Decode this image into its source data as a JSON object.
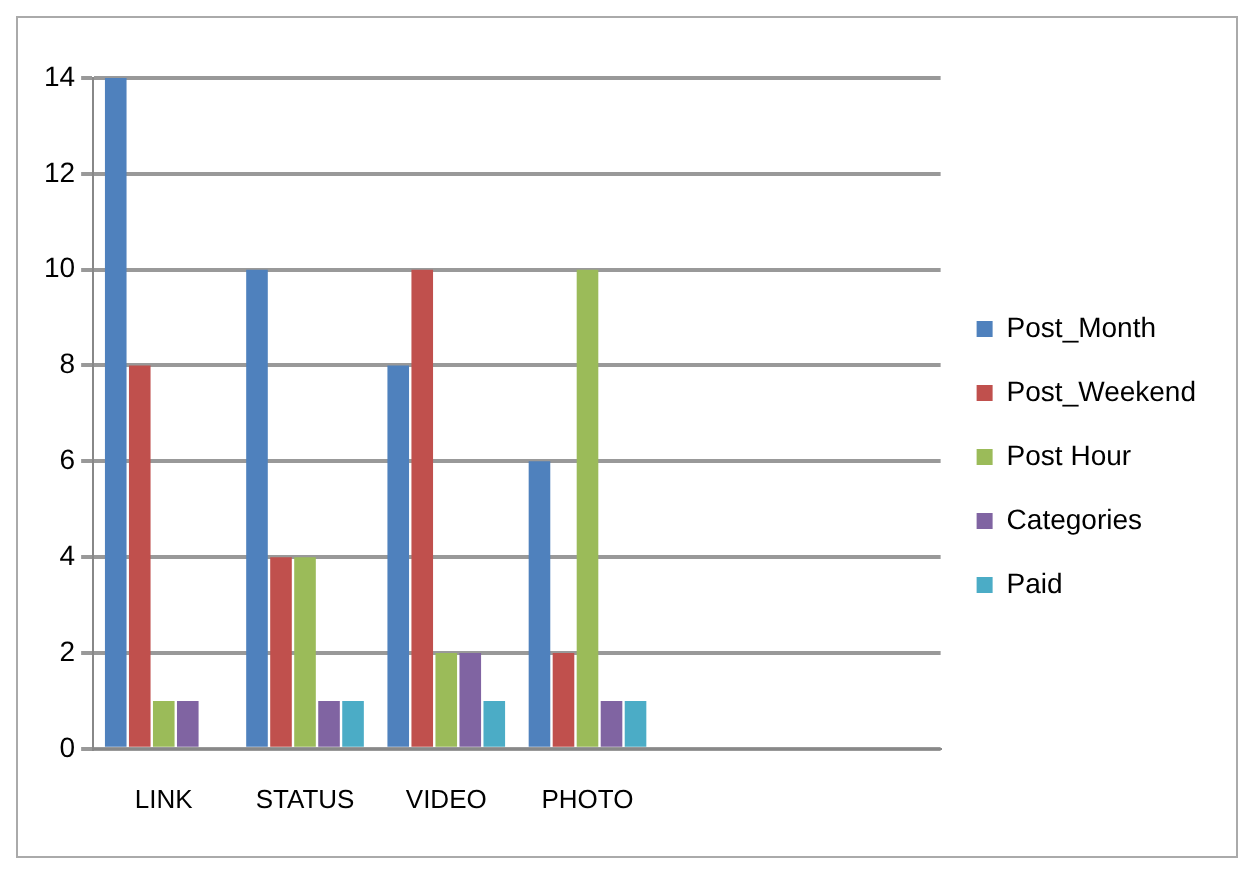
{
  "chart_data": {
    "type": "bar",
    "categories": [
      "LINK",
      "STATUS",
      "VIDEO",
      "PHOTO",
      null,
      null
    ],
    "series": [
      {
        "name": "Post_Month",
        "color": "#4f81bd",
        "values": [
          14,
          10,
          8,
          6,
          null,
          null
        ]
      },
      {
        "name": "Post_Weekend",
        "color": "#c0504d",
        "values": [
          8,
          4,
          10,
          2,
          null,
          null
        ]
      },
      {
        "name": "Post Hour",
        "color": "#9bbb59",
        "values": [
          1,
          4,
          2,
          10,
          null,
          null
        ]
      },
      {
        "name": "Categories",
        "color": "#8064a2",
        "values": [
          1,
          1,
          2,
          1,
          null,
          null
        ]
      },
      {
        "name": "Paid",
        "color": "#4bacc6",
        "values": [
          0,
          1,
          1,
          1,
          null,
          null
        ]
      }
    ],
    "ylim": [
      0,
      14
    ],
    "yticks": [
      0,
      2,
      4,
      6,
      8,
      10,
      12,
      14
    ],
    "grid": "y",
    "legend": "right"
  }
}
